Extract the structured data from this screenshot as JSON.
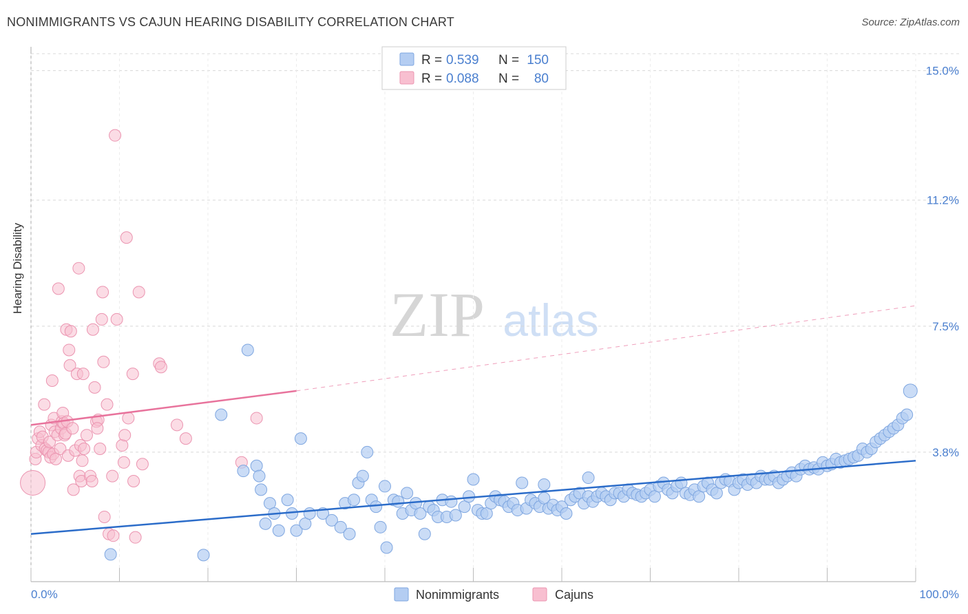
{
  "title": "NONIMMIGRANTS VS CAJUN HEARING DISABILITY CORRELATION CHART",
  "source": "Source: ZipAtlas.com",
  "watermark": {
    "zip": "ZIP",
    "atlas": "atlas"
  },
  "colors": {
    "blue_fill": "#b4cdf2",
    "blue_stroke": "#7ea6e0",
    "blue_line": "#2b6cc9",
    "pink_fill": "#f8bfd0",
    "pink_stroke": "#eb94b0",
    "pink_line": "#e8739c",
    "tick_text": "#4a7fcf",
    "grid": "#d8d8d8"
  },
  "legend_top": {
    "rows": [
      {
        "r_label": "R =",
        "r_value": "0.539",
        "n_label": "N =",
        "n_value": "150"
      },
      {
        "r_label": "R =",
        "r_value": "0.088",
        "n_label": "N =",
        "n_value": "80"
      }
    ]
  },
  "legend_bottom": {
    "items": [
      "Nonimmigrants",
      "Cajuns"
    ]
  },
  "chart_data": {
    "type": "scatter",
    "title": "NONIMMIGRANTS VS CAJUN HEARING DISABILITY CORRELATION CHART",
    "xlabel": "",
    "ylabel": "Hearing Disability",
    "xlim": [
      0,
      100
    ],
    "ylim": [
      0,
      15.7
    ],
    "x_tick_labels": [
      "0.0%",
      "100.0%"
    ],
    "y_ticks": [
      3.8,
      7.5,
      11.2,
      15.0
    ],
    "y_tick_labels": [
      "3.8%",
      "7.5%",
      "11.2%",
      "15.0%"
    ],
    "grid": true,
    "legend_position": "top-center",
    "series": [
      {
        "name": "Nonimmigrants",
        "trend": {
          "x0": 0,
          "y0": 1.4,
          "x1": 100,
          "y1": 3.55,
          "dashed_to": null
        },
        "points": [
          [
            9,
            0.8
          ],
          [
            19.5,
            0.78
          ],
          [
            21.5,
            4.9
          ],
          [
            24,
            3.25
          ],
          [
            24.5,
            6.8
          ],
          [
            25.5,
            3.4
          ],
          [
            25.8,
            3.1
          ],
          [
            26,
            2.7
          ],
          [
            26.5,
            1.7
          ],
          [
            27,
            2.3
          ],
          [
            27.5,
            2.0
          ],
          [
            28,
            1.5
          ],
          [
            29,
            2.4
          ],
          [
            29.5,
            2.0
          ],
          [
            30,
            1.5
          ],
          [
            30.5,
            4.2
          ],
          [
            31,
            1.7
          ],
          [
            31.5,
            2.0
          ],
          [
            33,
            2.0
          ],
          [
            34,
            1.8
          ],
          [
            35,
            1.6
          ],
          [
            35.5,
            2.3
          ],
          [
            36,
            1.4
          ],
          [
            36.5,
            2.4
          ],
          [
            37,
            2.9
          ],
          [
            37.5,
            3.1
          ],
          [
            38,
            3.8
          ],
          [
            38.5,
            2.4
          ],
          [
            39,
            2.2
          ],
          [
            39.5,
            1.6
          ],
          [
            40,
            2.8
          ],
          [
            40.2,
            1.0
          ],
          [
            41,
            2.4
          ],
          [
            41.5,
            2.35
          ],
          [
            42,
            2.0
          ],
          [
            42.5,
            2.6
          ],
          [
            43,
            2.1
          ],
          [
            43.5,
            2.3
          ],
          [
            44,
            2.0
          ],
          [
            44.5,
            1.4
          ],
          [
            45,
            2.2
          ],
          [
            45.5,
            2.1
          ],
          [
            46,
            1.9
          ],
          [
            46.5,
            2.4
          ],
          [
            47,
            1.9
          ],
          [
            47.5,
            2.35
          ],
          [
            48,
            1.95
          ],
          [
            49,
            2.2
          ],
          [
            49.5,
            2.5
          ],
          [
            50,
            3.0
          ],
          [
            50.5,
            2.1
          ],
          [
            51,
            2.0
          ],
          [
            51.5,
            2.0
          ],
          [
            52,
            2.3
          ],
          [
            52.5,
            2.5
          ],
          [
            53,
            2.4
          ],
          [
            53.5,
            2.35
          ],
          [
            54,
            2.2
          ],
          [
            54.5,
            2.3
          ],
          [
            55,
            2.1
          ],
          [
            55.5,
            2.9
          ],
          [
            56,
            2.15
          ],
          [
            56.5,
            2.4
          ],
          [
            57,
            2.3
          ],
          [
            57.5,
            2.2
          ],
          [
            58,
            2.45
          ],
          [
            58.5,
            2.15
          ],
          [
            59,
            2.25
          ],
          [
            59.5,
            2.1
          ],
          [
            60,
            2.2
          ],
          [
            60.5,
            2.0
          ],
          [
            61,
            2.4
          ],
          [
            61.5,
            2.5
          ],
          [
            62,
            2.6
          ],
          [
            62.5,
            2.3
          ],
          [
            63,
            2.5
          ],
          [
            63.5,
            2.35
          ],
          [
            64,
            2.5
          ],
          [
            64.5,
            2.6
          ],
          [
            65,
            2.5
          ],
          [
            65.5,
            2.4
          ],
          [
            66,
            2.6
          ],
          [
            66.5,
            2.6
          ],
          [
            67,
            2.5
          ],
          [
            67.5,
            2.7
          ],
          [
            68,
            2.6
          ],
          [
            68.5,
            2.55
          ],
          [
            69,
            2.5
          ],
          [
            69.5,
            2.6
          ],
          [
            70,
            2.7
          ],
          [
            70.5,
            2.5
          ],
          [
            71,
            2.8
          ],
          [
            71.5,
            2.9
          ],
          [
            72,
            2.7
          ],
          [
            72.5,
            2.6
          ],
          [
            73,
            2.8
          ],
          [
            73.5,
            2.9
          ],
          [
            74,
            2.6
          ],
          [
            74.5,
            2.55
          ],
          [
            75,
            2.7
          ],
          [
            75.5,
            2.5
          ],
          [
            76,
            2.8
          ],
          [
            76.5,
            2.9
          ],
          [
            77,
            2.7
          ],
          [
            77.5,
            2.6
          ],
          [
            78,
            2.9
          ],
          [
            78.5,
            3.0
          ],
          [
            79,
            2.95
          ],
          [
            79.5,
            2.7
          ],
          [
            80,
            2.9
          ],
          [
            80.5,
            3.0
          ],
          [
            81,
            2.85
          ],
          [
            81.5,
            3.0
          ],
          [
            82,
            2.9
          ],
          [
            82.5,
            3.1
          ],
          [
            83,
            3.0
          ],
          [
            83.5,
            3.0
          ],
          [
            84,
            3.1
          ],
          [
            84.5,
            2.9
          ],
          [
            85,
            3.0
          ],
          [
            85.5,
            3.1
          ],
          [
            86,
            3.2
          ],
          [
            86.5,
            3.1
          ],
          [
            87,
            3.3
          ],
          [
            87.5,
            3.4
          ],
          [
            88,
            3.3
          ],
          [
            88.5,
            3.35
          ],
          [
            89,
            3.3
          ],
          [
            89.5,
            3.5
          ],
          [
            90,
            3.4
          ],
          [
            90.5,
            3.45
          ],
          [
            91,
            3.6
          ],
          [
            91.5,
            3.5
          ],
          [
            92,
            3.55
          ],
          [
            92.5,
            3.6
          ],
          [
            93,
            3.65
          ],
          [
            93.5,
            3.7
          ],
          [
            94,
            3.9
          ],
          [
            94.5,
            3.8
          ],
          [
            95,
            3.9
          ],
          [
            95.5,
            4.1
          ],
          [
            96,
            4.2
          ],
          [
            96.5,
            4.3
          ],
          [
            97,
            4.4
          ],
          [
            97.5,
            4.5
          ],
          [
            98,
            4.6
          ],
          [
            98.5,
            4.8
          ],
          [
            99,
            4.9
          ],
          [
            99.4,
            5.6
          ],
          [
            63,
            3.05
          ],
          [
            58,
            2.85
          ]
        ]
      },
      {
        "name": "Cajuns",
        "trend": {
          "x0": 0,
          "y0": 4.6,
          "x1": 30,
          "y1": 5.6,
          "dashed_to": [
            100,
            8.1
          ]
        },
        "points": [
          [
            0.2,
            2.9
          ],
          [
            0.5,
            3.6
          ],
          [
            0.6,
            3.8
          ],
          [
            0.8,
            4.2
          ],
          [
            1,
            4.4
          ],
          [
            1.2,
            4.0
          ],
          [
            1.3,
            4.25
          ],
          [
            1.5,
            5.2
          ],
          [
            1.6,
            3.9
          ],
          [
            1.8,
            3.85
          ],
          [
            2,
            3.8
          ],
          [
            2.1,
            4.1
          ],
          [
            2.2,
            3.65
          ],
          [
            2.3,
            4.6
          ],
          [
            2.4,
            5.9
          ],
          [
            2.5,
            3.75
          ],
          [
            2.6,
            4.8
          ],
          [
            2.7,
            4.4
          ],
          [
            2.8,
            3.6
          ],
          [
            3,
            4.3
          ],
          [
            3.1,
            8.6
          ],
          [
            3.3,
            3.9
          ],
          [
            3.4,
            4.5
          ],
          [
            3.5,
            4.7
          ],
          [
            3.6,
            4.95
          ],
          [
            3.7,
            4.65
          ],
          [
            3.8,
            4.3
          ],
          [
            3.9,
            4.35
          ],
          [
            4,
            7.4
          ],
          [
            4.1,
            4.7
          ],
          [
            4.2,
            3.7
          ],
          [
            4.3,
            6.8
          ],
          [
            4.4,
            6.35
          ],
          [
            4.5,
            7.35
          ],
          [
            4.7,
            4.5
          ],
          [
            4.8,
            2.7
          ],
          [
            5,
            3.85
          ],
          [
            5.2,
            6.1
          ],
          [
            5.4,
            9.2
          ],
          [
            5.5,
            3.1
          ],
          [
            5.6,
            4.0
          ],
          [
            5.7,
            2.95
          ],
          [
            5.8,
            3.55
          ],
          [
            5.9,
            6.1
          ],
          [
            6,
            3.9
          ],
          [
            6.3,
            4.3
          ],
          [
            6.7,
            3.1
          ],
          [
            6.9,
            2.95
          ],
          [
            7,
            7.4
          ],
          [
            7.2,
            5.7
          ],
          [
            7.4,
            4.7
          ],
          [
            7.6,
            4.75
          ],
          [
            7.8,
            3.9
          ],
          [
            8,
            7.7
          ],
          [
            8.1,
            8.5
          ],
          [
            8.2,
            6.45
          ],
          [
            8.3,
            1.9
          ],
          [
            8.6,
            5.2
          ],
          [
            8.8,
            1.4
          ],
          [
            9.2,
            3.1
          ],
          [
            9.3,
            1.35
          ],
          [
            9.5,
            13.1
          ],
          [
            9.7,
            7.7
          ],
          [
            10.3,
            4.0
          ],
          [
            10.5,
            3.5
          ],
          [
            10.6,
            4.3
          ],
          [
            10.8,
            10.1
          ],
          [
            11,
            4.8
          ],
          [
            11.5,
            6.1
          ],
          [
            11.6,
            2.95
          ],
          [
            11.8,
            1.3
          ],
          [
            12.2,
            8.5
          ],
          [
            12.6,
            3.45
          ],
          [
            14.5,
            6.4
          ],
          [
            14.7,
            6.3
          ],
          [
            16.5,
            4.6
          ],
          [
            17.5,
            4.2
          ],
          [
            23.8,
            3.5
          ],
          [
            25.5,
            4.8
          ],
          [
            7.5,
            4.5
          ]
        ]
      }
    ]
  }
}
